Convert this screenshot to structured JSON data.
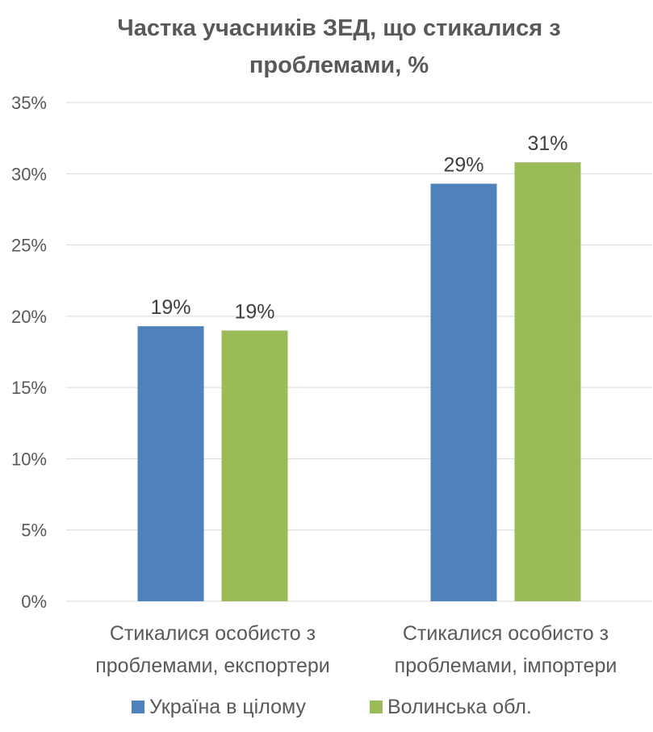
{
  "chart_data": {
    "type": "bar",
    "title_lines": [
      "Частка учасників ЗЕД, що стикалися з",
      "проблемами, %"
    ],
    "categories": [
      [
        "Стикалися особисто з",
        "проблемами, експортери"
      ],
      [
        "Стикалися особисто з",
        "проблемами, імпортери"
      ]
    ],
    "series": [
      {
        "name": "Україна в цілому",
        "color": "#4F81BD",
        "values": [
          19.3,
          29.3
        ],
        "labels": [
          "19%",
          "29%"
        ]
      },
      {
        "name": "Волинська обл.",
        "color": "#9BBB59",
        "values": [
          19.0,
          30.8
        ],
        "labels": [
          "19%",
          "31%"
        ]
      }
    ],
    "ylim": [
      0,
      35
    ],
    "yticks": [
      0,
      5,
      10,
      15,
      20,
      25,
      30,
      35
    ],
    "ytick_labels": [
      "0%",
      "5%",
      "10%",
      "15%",
      "20%",
      "25%",
      "30%",
      "35%"
    ],
    "grid": true,
    "legend_position": "bottom"
  }
}
